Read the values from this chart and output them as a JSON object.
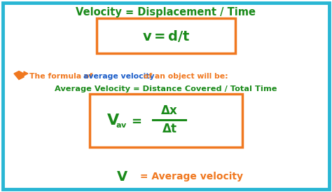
{
  "bg_color": "#ffffff",
  "border_color": "#29b6d4",
  "orange": "#f07820",
  "green": "#1a8a1a",
  "blue": "#1a5cc8",
  "title": "Velocity = Displacement / Time",
  "formula1": "v = d/t",
  "bullet_part1": "The formula of ",
  "bullet_highlight": "average velocity",
  "bullet_part2": " of an object will be:",
  "formula2": "Average Velocity = Distance Covered / Total Time",
  "Vav_V": "V",
  "Vav_sub": "av",
  "Vav_eq": " =  ",
  "delta_x": "Δx",
  "delta_t": "Δt",
  "bottom_V": "V",
  "bottom_rest": " = Average velocity"
}
